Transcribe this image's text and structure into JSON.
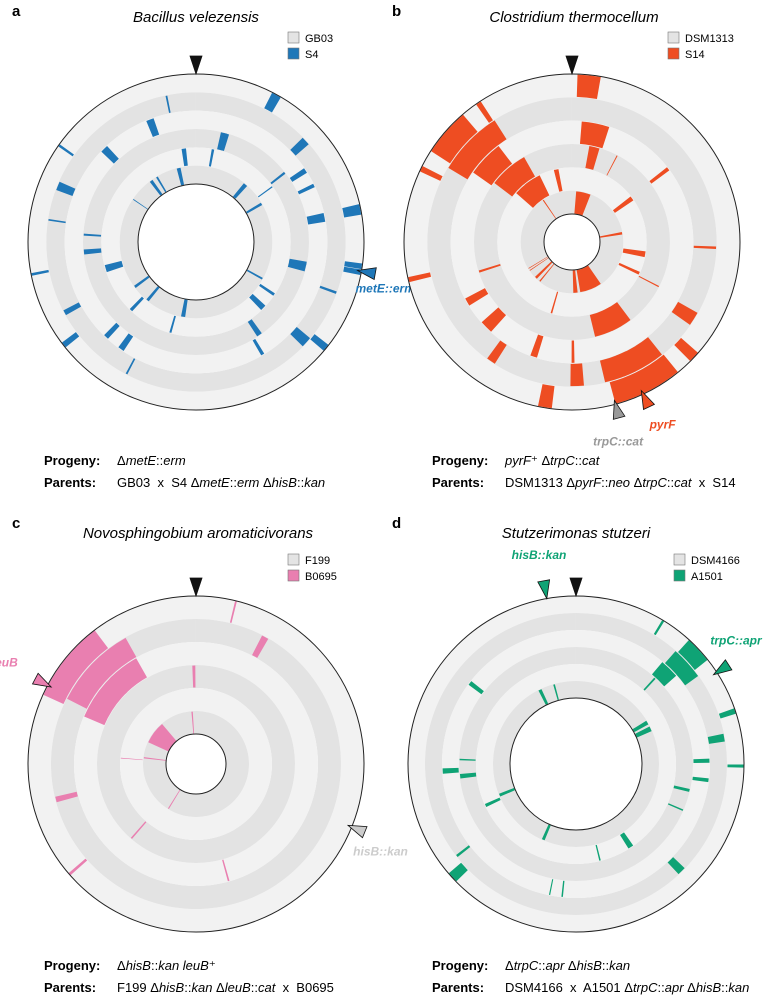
{
  "panels": [
    {
      "letter": "a",
      "organism": "Bacillus velezensis",
      "legend": [
        {
          "label": "GB03",
          "color": "#e4e4e4"
        },
        {
          "label": "S4",
          "color": "#1f77b8"
        }
      ],
      "accent": "#1f77b8",
      "markers": [
        {
          "label": "",
          "angle": 0,
          "color": "#111111"
        },
        {
          "label": "metE::erm",
          "angle": 100,
          "color": "#1f77b8"
        }
      ],
      "progeny": [
        {
          "t": "Δ",
          "i": false
        },
        {
          "t": "metE",
          "i": true
        },
        {
          "t": "::",
          "i": false
        },
        {
          "t": "erm",
          "i": true
        }
      ],
      "parents": [
        {
          "t": "GB03  x  S4 Δ",
          "i": false
        },
        {
          "t": "metE",
          "i": true
        },
        {
          "t": "::",
          "i": false
        },
        {
          "t": "erm",
          "i": true
        },
        {
          "t": " Δ",
          "i": false
        },
        {
          "t": "hisB",
          "i": true
        },
        {
          "t": "::",
          "i": false
        },
        {
          "t": "kan",
          "i": true
        }
      ]
    },
    {
      "letter": "b",
      "organism": "Clostridium thermocellum",
      "legend": [
        {
          "label": "DSM1313",
          "color": "#e4e4e4"
        },
        {
          "label": "S14",
          "color": "#ee4d22"
        }
      ],
      "accent": "#ee4d22",
      "markers": [
        {
          "label": "",
          "angle": 0,
          "color": "#111111"
        },
        {
          "label": "pyrF",
          "angle": 155,
          "color": "#ee4d22"
        },
        {
          "label": "trpC::cat",
          "angle": 165,
          "color": "#999999"
        }
      ],
      "progeny": [
        {
          "t": "pyrF",
          "i": true
        },
        {
          "t": "⁺ Δ",
          "i": false
        },
        {
          "t": "trpC",
          "i": true
        },
        {
          "t": "::",
          "i": false
        },
        {
          "t": "cat",
          "i": true
        }
      ],
      "parents": [
        {
          "t": "DSM1313 Δ",
          "i": false
        },
        {
          "t": "pyrF",
          "i": true
        },
        {
          "t": "::",
          "i": false
        },
        {
          "t": "neo",
          "i": true
        },
        {
          "t": " Δ",
          "i": false
        },
        {
          "t": "trpC",
          "i": true
        },
        {
          "t": "::",
          "i": false
        },
        {
          "t": "cat",
          "i": true
        },
        {
          "t": "  x  S14",
          "i": false
        }
      ]
    },
    {
      "letter": "c",
      "organism": "Novosphingobium aromaticivorans",
      "legend": [
        {
          "label": "F199",
          "color": "#e4e4e4"
        },
        {
          "label": "B0695",
          "color": "#e97fb0"
        }
      ],
      "accent": "#e97fb0",
      "markers": [
        {
          "label": "",
          "angle": 0,
          "color": "#111111"
        },
        {
          "label": "leuB",
          "angle": 298,
          "color": "#e97fb0"
        },
        {
          "label": "hisB::kan",
          "angle": 112,
          "color": "#cccccc"
        }
      ],
      "progeny": [
        {
          "t": "Δ",
          "i": false
        },
        {
          "t": "hisB",
          "i": true
        },
        {
          "t": "::",
          "i": false
        },
        {
          "t": "kan leuB",
          "i": true
        },
        {
          "t": "⁺",
          "i": false
        }
      ],
      "parents": [
        {
          "t": "F199 Δ",
          "i": false
        },
        {
          "t": "hisB",
          "i": true
        },
        {
          "t": "::",
          "i": false
        },
        {
          "t": "kan",
          "i": true
        },
        {
          "t": " Δ",
          "i": false
        },
        {
          "t": "leuB",
          "i": true
        },
        {
          "t": "::",
          "i": false
        },
        {
          "t": "cat",
          "i": true
        },
        {
          "t": "  x  B0695",
          "i": false
        }
      ]
    },
    {
      "letter": "d",
      "organism": "Stutzerimonas stutzeri",
      "legend": [
        {
          "label": "DSM4166",
          "color": "#e4e4e4"
        },
        {
          "label": "A1501",
          "color": "#0fa375"
        }
      ],
      "accent": "#0fa375",
      "markers": [
        {
          "label": "",
          "angle": 0,
          "color": "#111111"
        },
        {
          "label": "hisB::kan",
          "angle": 350,
          "color": "#0fa375"
        },
        {
          "label": "trpC::apr",
          "angle": 57,
          "color": "#0fa375"
        }
      ],
      "progeny": [
        {
          "t": "Δ",
          "i": false
        },
        {
          "t": "trpC",
          "i": true
        },
        {
          "t": "::",
          "i": false
        },
        {
          "t": "apr",
          "i": true
        },
        {
          "t": " Δ",
          "i": false
        },
        {
          "t": "hisB",
          "i": true
        },
        {
          "t": "::",
          "i": false
        },
        {
          "t": "kan",
          "i": true
        }
      ],
      "parents": [
        {
          "t": "DSM4166  x  A1501 Δ",
          "i": false
        },
        {
          "t": "trpC",
          "i": true
        },
        {
          "t": "::",
          "i": false
        },
        {
          "t": "apr",
          "i": true
        },
        {
          "t": " Δ",
          "i": false
        },
        {
          "t": "hisB",
          "i": true
        },
        {
          "t": "::",
          "i": false
        },
        {
          "t": "kan",
          "i": true
        }
      ]
    }
  ],
  "labels": {
    "progeny": "Progeny:",
    "parents": "Parents:"
  },
  "colors": {
    "track_light": "#f2f2f2",
    "track_dark": "#e3e3e3",
    "outline": "#222222"
  }
}
